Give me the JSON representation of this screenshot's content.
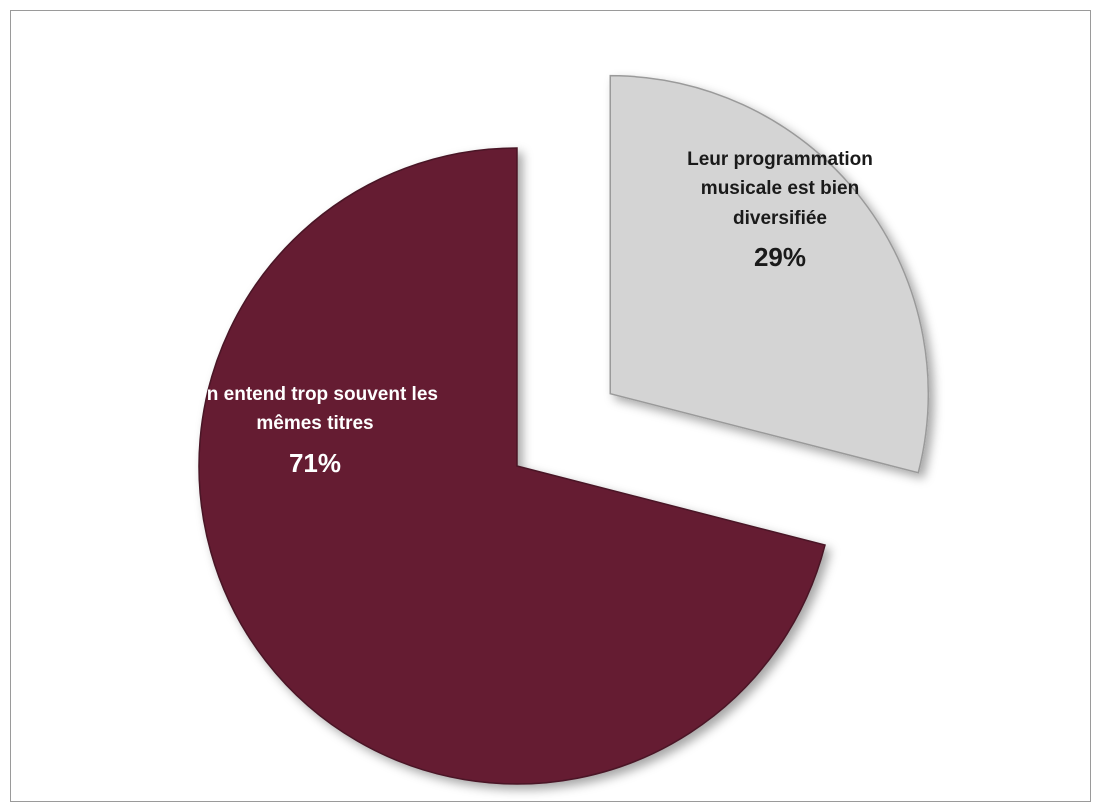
{
  "chart_data": {
    "type": "pie",
    "slices": [
      {
        "label": "On entend trop souvent les mêmes titres",
        "value": 71,
        "value_label": "71%",
        "color": "#651c32"
      },
      {
        "label": "Leur programmation musicale est bien diversifiée",
        "value": 29,
        "value_label": "29%",
        "color": "#d4d4d4",
        "exploded": true
      }
    ],
    "title": "",
    "legend": "none"
  }
}
